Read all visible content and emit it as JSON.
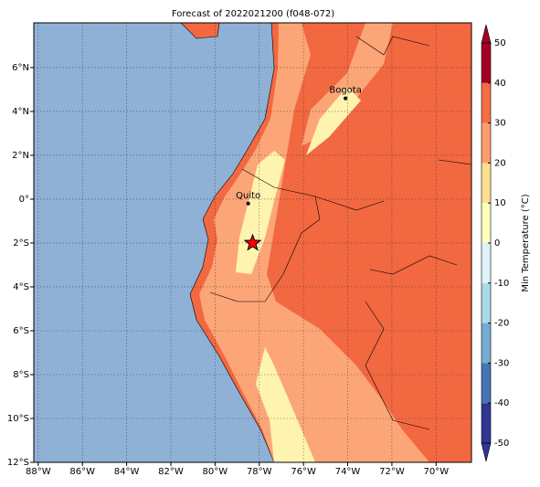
{
  "title": "Forecast of 2022021200 (f048-072)",
  "map": {
    "xlim": [
      -88.2,
      -68.4
    ],
    "ylim": [
      -12,
      8.04
    ],
    "xticks": [
      {
        "value": -88,
        "label": "88°W"
      },
      {
        "value": -86,
        "label": "86°W"
      },
      {
        "value": -84,
        "label": "84°W"
      },
      {
        "value": -82,
        "label": "82°W"
      },
      {
        "value": -80,
        "label": "80°W"
      },
      {
        "value": -78,
        "label": "78°W"
      },
      {
        "value": -76,
        "label": "76°W"
      },
      {
        "value": -74,
        "label": "74°W"
      },
      {
        "value": -72,
        "label": "72°W"
      },
      {
        "value": -70,
        "label": "70°W"
      }
    ],
    "yticks": [
      {
        "value": -12,
        "label": "12°S"
      },
      {
        "value": -10,
        "label": "10°S"
      },
      {
        "value": -8,
        "label": "8°S"
      },
      {
        "value": -6,
        "label": "6°S"
      },
      {
        "value": -4,
        "label": "4°S"
      },
      {
        "value": -2,
        "label": "2°S"
      },
      {
        "value": 0,
        "label": "0°"
      },
      {
        "value": 2,
        "label": "2°N"
      },
      {
        "value": 4,
        "label": "4°N"
      },
      {
        "value": 6,
        "label": "6°N"
      }
    ],
    "grid": true,
    "cities": [
      {
        "name": "Quito",
        "lon": -78.5,
        "lat": -0.2
      },
      {
        "name": "Bogota",
        "lon": -74.1,
        "lat": 4.6
      }
    ],
    "marker": {
      "lon": -78.3,
      "lat": -2.0,
      "color": "#ff0000"
    }
  },
  "colorbar": {
    "label": "Min Temperature (°C)",
    "lim": [
      -50,
      50
    ],
    "ticks": [
      -50,
      -40,
      -30,
      -20,
      -10,
      0,
      10,
      20,
      30,
      40,
      50
    ],
    "colors": [
      "#313695",
      "#4575b4",
      "#74add1",
      "#abd9e9",
      "#e0f3f8",
      "#ffffbf",
      "#fee090",
      "#fc9d6e",
      "#f46d43",
      "#a50026"
    ]
  }
}
